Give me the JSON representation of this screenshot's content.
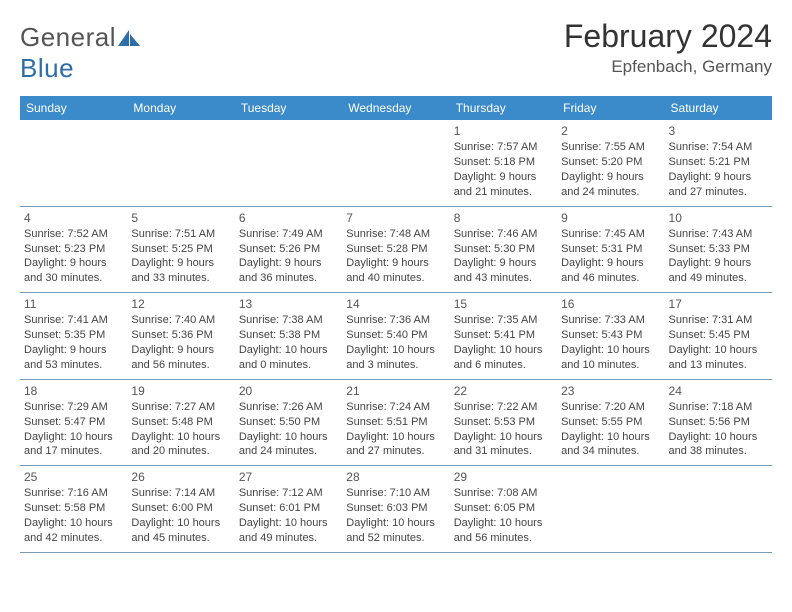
{
  "brand": {
    "word1": "General",
    "word2": "Blue"
  },
  "title": "February 2024",
  "location": "Epfenbach, Germany",
  "colors": {
    "header_bg": "#3b8bca",
    "header_text": "#ffffff",
    "brand_gray": "#555555",
    "brand_blue": "#2d6ea8",
    "cell_border": "#7a9bb8",
    "body_text": "#444444"
  },
  "weekdays": [
    "Sunday",
    "Monday",
    "Tuesday",
    "Wednesday",
    "Thursday",
    "Friday",
    "Saturday"
  ],
  "weeks": [
    [
      null,
      null,
      null,
      null,
      {
        "n": "1",
        "sr": "Sunrise: 7:57 AM",
        "ss": "Sunset: 5:18 PM",
        "d1": "Daylight: 9 hours",
        "d2": "and 21 minutes."
      },
      {
        "n": "2",
        "sr": "Sunrise: 7:55 AM",
        "ss": "Sunset: 5:20 PM",
        "d1": "Daylight: 9 hours",
        "d2": "and 24 minutes."
      },
      {
        "n": "3",
        "sr": "Sunrise: 7:54 AM",
        "ss": "Sunset: 5:21 PM",
        "d1": "Daylight: 9 hours",
        "d2": "and 27 minutes."
      }
    ],
    [
      {
        "n": "4",
        "sr": "Sunrise: 7:52 AM",
        "ss": "Sunset: 5:23 PM",
        "d1": "Daylight: 9 hours",
        "d2": "and 30 minutes."
      },
      {
        "n": "5",
        "sr": "Sunrise: 7:51 AM",
        "ss": "Sunset: 5:25 PM",
        "d1": "Daylight: 9 hours",
        "d2": "and 33 minutes."
      },
      {
        "n": "6",
        "sr": "Sunrise: 7:49 AM",
        "ss": "Sunset: 5:26 PM",
        "d1": "Daylight: 9 hours",
        "d2": "and 36 minutes."
      },
      {
        "n": "7",
        "sr": "Sunrise: 7:48 AM",
        "ss": "Sunset: 5:28 PM",
        "d1": "Daylight: 9 hours",
        "d2": "and 40 minutes."
      },
      {
        "n": "8",
        "sr": "Sunrise: 7:46 AM",
        "ss": "Sunset: 5:30 PM",
        "d1": "Daylight: 9 hours",
        "d2": "and 43 minutes."
      },
      {
        "n": "9",
        "sr": "Sunrise: 7:45 AM",
        "ss": "Sunset: 5:31 PM",
        "d1": "Daylight: 9 hours",
        "d2": "and 46 minutes."
      },
      {
        "n": "10",
        "sr": "Sunrise: 7:43 AM",
        "ss": "Sunset: 5:33 PM",
        "d1": "Daylight: 9 hours",
        "d2": "and 49 minutes."
      }
    ],
    [
      {
        "n": "11",
        "sr": "Sunrise: 7:41 AM",
        "ss": "Sunset: 5:35 PM",
        "d1": "Daylight: 9 hours",
        "d2": "and 53 minutes."
      },
      {
        "n": "12",
        "sr": "Sunrise: 7:40 AM",
        "ss": "Sunset: 5:36 PM",
        "d1": "Daylight: 9 hours",
        "d2": "and 56 minutes."
      },
      {
        "n": "13",
        "sr": "Sunrise: 7:38 AM",
        "ss": "Sunset: 5:38 PM",
        "d1": "Daylight: 10 hours",
        "d2": "and 0 minutes."
      },
      {
        "n": "14",
        "sr": "Sunrise: 7:36 AM",
        "ss": "Sunset: 5:40 PM",
        "d1": "Daylight: 10 hours",
        "d2": "and 3 minutes."
      },
      {
        "n": "15",
        "sr": "Sunrise: 7:35 AM",
        "ss": "Sunset: 5:41 PM",
        "d1": "Daylight: 10 hours",
        "d2": "and 6 minutes."
      },
      {
        "n": "16",
        "sr": "Sunrise: 7:33 AM",
        "ss": "Sunset: 5:43 PM",
        "d1": "Daylight: 10 hours",
        "d2": "and 10 minutes."
      },
      {
        "n": "17",
        "sr": "Sunrise: 7:31 AM",
        "ss": "Sunset: 5:45 PM",
        "d1": "Daylight: 10 hours",
        "d2": "and 13 minutes."
      }
    ],
    [
      {
        "n": "18",
        "sr": "Sunrise: 7:29 AM",
        "ss": "Sunset: 5:47 PM",
        "d1": "Daylight: 10 hours",
        "d2": "and 17 minutes."
      },
      {
        "n": "19",
        "sr": "Sunrise: 7:27 AM",
        "ss": "Sunset: 5:48 PM",
        "d1": "Daylight: 10 hours",
        "d2": "and 20 minutes."
      },
      {
        "n": "20",
        "sr": "Sunrise: 7:26 AM",
        "ss": "Sunset: 5:50 PM",
        "d1": "Daylight: 10 hours",
        "d2": "and 24 minutes."
      },
      {
        "n": "21",
        "sr": "Sunrise: 7:24 AM",
        "ss": "Sunset: 5:51 PM",
        "d1": "Daylight: 10 hours",
        "d2": "and 27 minutes."
      },
      {
        "n": "22",
        "sr": "Sunrise: 7:22 AM",
        "ss": "Sunset: 5:53 PM",
        "d1": "Daylight: 10 hours",
        "d2": "and 31 minutes."
      },
      {
        "n": "23",
        "sr": "Sunrise: 7:20 AM",
        "ss": "Sunset: 5:55 PM",
        "d1": "Daylight: 10 hours",
        "d2": "and 34 minutes."
      },
      {
        "n": "24",
        "sr": "Sunrise: 7:18 AM",
        "ss": "Sunset: 5:56 PM",
        "d1": "Daylight: 10 hours",
        "d2": "and 38 minutes."
      }
    ],
    [
      {
        "n": "25",
        "sr": "Sunrise: 7:16 AM",
        "ss": "Sunset: 5:58 PM",
        "d1": "Daylight: 10 hours",
        "d2": "and 42 minutes."
      },
      {
        "n": "26",
        "sr": "Sunrise: 7:14 AM",
        "ss": "Sunset: 6:00 PM",
        "d1": "Daylight: 10 hours",
        "d2": "and 45 minutes."
      },
      {
        "n": "27",
        "sr": "Sunrise: 7:12 AM",
        "ss": "Sunset: 6:01 PM",
        "d1": "Daylight: 10 hours",
        "d2": "and 49 minutes."
      },
      {
        "n": "28",
        "sr": "Sunrise: 7:10 AM",
        "ss": "Sunset: 6:03 PM",
        "d1": "Daylight: 10 hours",
        "d2": "and 52 minutes."
      },
      {
        "n": "29",
        "sr": "Sunrise: 7:08 AM",
        "ss": "Sunset: 6:05 PM",
        "d1": "Daylight: 10 hours",
        "d2": "and 56 minutes."
      },
      null,
      null
    ]
  ]
}
